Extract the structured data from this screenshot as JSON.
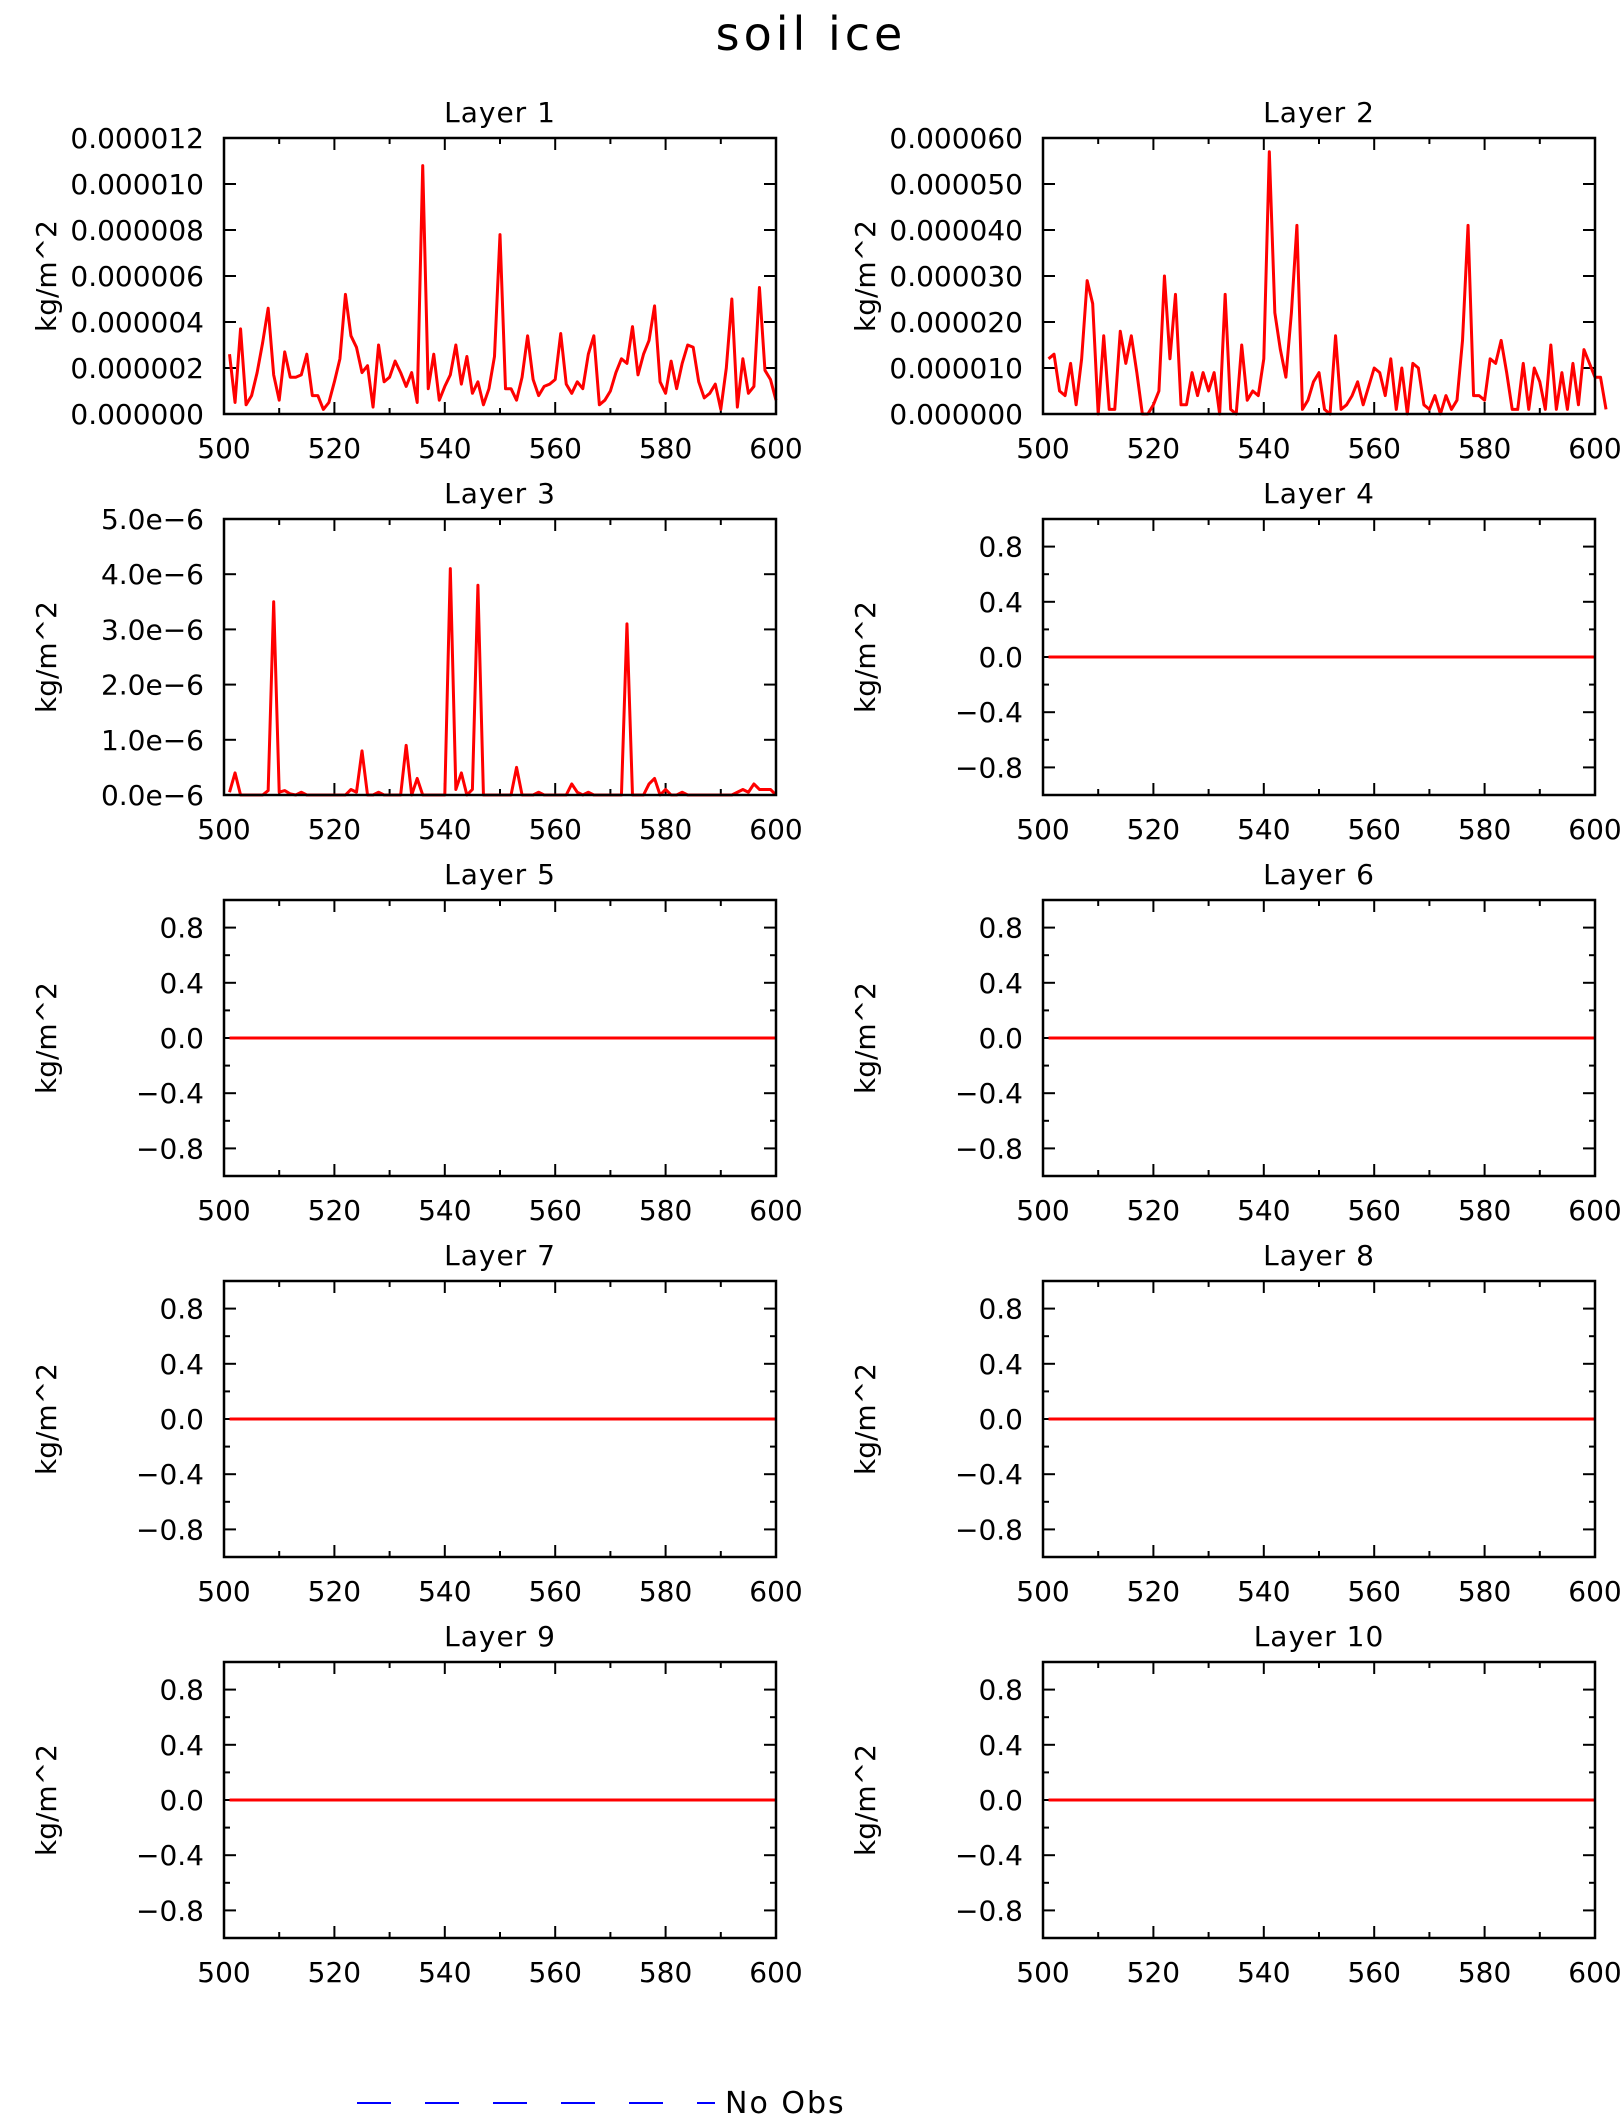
{
  "figure": {
    "title": "soil ice",
    "legend": {
      "label": "No Obs",
      "line_color": "#0000ff",
      "line_style": "dashed"
    },
    "series_color": "#ff0000"
  },
  "chart_data": [
    {
      "type": "line",
      "title": "Layer 1",
      "ylabel": "kg/m^2",
      "xlim": [
        500,
        600
      ],
      "ylim": [
        0,
        1.2e-05
      ],
      "x_ticks": [
        "500",
        "520",
        "540",
        "560",
        "580",
        "600"
      ],
      "y_ticks": [
        "0.000000",
        "0.000002",
        "0.000004",
        "0.000006",
        "0.000008",
        "0.000010",
        "0.000012"
      ],
      "y_tick_values": [
        0,
        2e-06,
        4e-06,
        6e-06,
        8e-06,
        1e-05,
        1.2e-05
      ],
      "x_start": 501,
      "x_step": 1,
      "values": [
        2.6e-06,
        5e-07,
        3.7e-06,
        4e-07,
        8e-07,
        1.8e-06,
        3.1e-06,
        4.6e-06,
        1.7e-06,
        6e-07,
        2.7e-06,
        1.6e-06,
        1.6e-06,
        1.7e-06,
        2.6e-06,
        8e-07,
        8e-07,
        2e-07,
        5e-07,
        1.4e-06,
        2.4e-06,
        5.2e-06,
        3.4e-06,
        2.9e-06,
        1.8e-06,
        2.1e-06,
        3e-07,
        3e-06,
        1.4e-06,
        1.6e-06,
        2.3e-06,
        1.8e-06,
        1.2e-06,
        1.8e-06,
        5e-07,
        1.08e-05,
        1.1e-06,
        2.6e-06,
        6e-07,
        1.2e-06,
        1.7e-06,
        3e-06,
        1.3e-06,
        2.5e-06,
        9e-07,
        1.4e-06,
        4e-07,
        1.1e-06,
        2.5e-06,
        7.8e-06,
        1.1e-06,
        1.1e-06,
        6e-07,
        1.6e-06,
        3.4e-06,
        1.5e-06,
        8e-07,
        1.2e-06,
        1.3e-06,
        1.5e-06,
        3.5e-06,
        1.3e-06,
        9e-07,
        1.4e-06,
        1.1e-06,
        2.6e-06,
        3.4e-06,
        4e-07,
        6e-07,
        1e-06,
        1.8e-06,
        2.4e-06,
        2.2e-06,
        3.8e-06,
        1.7e-06,
        2.6e-06,
        3.2e-06,
        4.7e-06,
        1.4e-06,
        9e-07,
        2.3e-06,
        1.1e-06,
        2.2e-06,
        3e-06,
        2.9e-06,
        1.4e-06,
        7e-07,
        9e-07,
        1.3e-06,
        2e-07,
        2e-06,
        5e-06,
        3e-07,
        2.4e-06,
        9e-07,
        1.2e-06,
        5.5e-06,
        1.9e-06,
        1.5e-06,
        6e-07
      ]
    },
    {
      "type": "line",
      "title": "Layer 2",
      "ylabel": "kg/m^2",
      "xlim": [
        500,
        600
      ],
      "ylim": [
        0,
        6e-05
      ],
      "x_ticks": [
        "500",
        "520",
        "540",
        "560",
        "580",
        "600"
      ],
      "y_ticks": [
        "0.000000",
        "0.000010",
        "0.000020",
        "0.000030",
        "0.000040",
        "0.000050",
        "0.000060"
      ],
      "y_tick_values": [
        0,
        1e-05,
        2e-05,
        3e-05,
        4e-05,
        5e-05,
        6e-05
      ],
      "x_start": 501,
      "x_step": 1,
      "values": [
        1.2e-05,
        1.3e-05,
        5e-06,
        4e-06,
        1.1e-05,
        2e-06,
        1.2e-05,
        2.9e-05,
        2.4e-05,
        0,
        1.7e-05,
        1e-06,
        1e-06,
        1.8e-05,
        1.1e-05,
        1.7e-05,
        9e-06,
        0,
        0,
        2e-06,
        5e-06,
        3e-05,
        1.2e-05,
        2.6e-05,
        2e-06,
        2e-06,
        9e-06,
        4e-06,
        9e-06,
        5e-06,
        9e-06,
        0,
        2.6e-05,
        1e-06,
        0,
        1.5e-05,
        3e-06,
        5e-06,
        4e-06,
        1.2e-05,
        5.7e-05,
        2.2e-05,
        1.4e-05,
        8e-06,
        2.2e-05,
        4.1e-05,
        1e-06,
        3e-06,
        7e-06,
        9e-06,
        1e-06,
        0,
        1.7e-05,
        1e-06,
        2e-06,
        4e-06,
        7e-06,
        2e-06,
        6e-06,
        1e-05,
        9e-06,
        4e-06,
        1.2e-05,
        1e-06,
        1e-05,
        0,
        1.1e-05,
        1e-05,
        2e-06,
        1e-06,
        4e-06,
        0,
        4e-06,
        1e-06,
        3e-06,
        1.6e-05,
        4.1e-05,
        4e-06,
        4e-06,
        3e-06,
        1.2e-05,
        1.1e-05,
        1.6e-05,
        9e-06,
        1e-06,
        1e-06,
        1.1e-05,
        1e-06,
        1e-05,
        7e-06,
        1e-06,
        1.5e-05,
        1e-06,
        9e-06,
        1e-06,
        1.1e-05,
        2e-06,
        1.4e-05,
        1.1e-05,
        8e-06,
        8e-06,
        1e-06
      ]
    },
    {
      "type": "line",
      "title": "Layer 3",
      "ylabel": "kg/m^2",
      "xlim": [
        500,
        600
      ],
      "ylim": [
        0,
        5e-06
      ],
      "x_ticks": [
        "500",
        "520",
        "540",
        "560",
        "580",
        "600"
      ],
      "y_ticks": [
        "0.0e−6",
        "1.0e−6",
        "2.0e−6",
        "3.0e−6",
        "4.0e−6",
        "5.0e−6"
      ],
      "y_tick_values": [
        0,
        1e-06,
        2e-06,
        3e-06,
        4e-06,
        5e-06
      ],
      "x_start": 501,
      "x_step": 1,
      "values": [
        5e-08,
        4e-07,
        0,
        0,
        0,
        0,
        0,
        8e-08,
        3.5e-06,
        5e-08,
        8e-08,
        2e-08,
        0,
        5e-08,
        0,
        0,
        0,
        0,
        0,
        0,
        0,
        0,
        1e-07,
        5e-08,
        8e-07,
        0,
        0,
        5e-08,
        0,
        0,
        0,
        0,
        9e-07,
        0,
        3e-07,
        0,
        0,
        0,
        0,
        0,
        4.1e-06,
        1e-07,
        4e-07,
        0,
        1e-07,
        3.8e-06,
        0,
        0,
        0,
        0,
        0,
        0,
        5e-07,
        0,
        0,
        0,
        5e-08,
        0,
        0,
        0,
        0,
        0,
        2e-07,
        5e-08,
        0,
        5e-08,
        0,
        0,
        0,
        0,
        0,
        0,
        3.1e-06,
        0,
        0,
        0,
        2e-07,
        3e-07,
        0,
        1e-07,
        0,
        0,
        5e-08,
        0,
        0,
        0,
        0,
        0,
        0,
        0,
        0,
        0,
        5e-08,
        1e-07,
        5e-08,
        2e-07,
        1e-07,
        1e-07,
        1e-07,
        0
      ]
    },
    {
      "type": "line",
      "title": "Layer 4",
      "ylabel": "kg/m^2",
      "xlim": [
        500,
        600
      ],
      "ylim": [
        -1,
        1
      ],
      "x_ticks": [
        "500",
        "520",
        "540",
        "560",
        "580",
        "600"
      ],
      "y_ticks": [
        "−0.8",
        "−0.4",
        "0.0",
        "0.4",
        "0.8"
      ],
      "y_tick_values": [
        -0.8,
        -0.4,
        0,
        0.4,
        0.8
      ],
      "x_start": 501,
      "x_step": 1,
      "constant": 0
    },
    {
      "type": "line",
      "title": "Layer 5",
      "ylabel": "kg/m^2",
      "xlim": [
        500,
        600
      ],
      "ylim": [
        -1,
        1
      ],
      "x_ticks": [
        "500",
        "520",
        "540",
        "560",
        "580",
        "600"
      ],
      "y_ticks": [
        "−0.8",
        "−0.4",
        "0.0",
        "0.4",
        "0.8"
      ],
      "y_tick_values": [
        -0.8,
        -0.4,
        0,
        0.4,
        0.8
      ],
      "x_start": 501,
      "x_step": 1,
      "constant": 0
    },
    {
      "type": "line",
      "title": "Layer 6",
      "ylabel": "kg/m^2",
      "xlim": [
        500,
        600
      ],
      "ylim": [
        -1,
        1
      ],
      "x_ticks": [
        "500",
        "520",
        "540",
        "560",
        "580",
        "600"
      ],
      "y_ticks": [
        "−0.8",
        "−0.4",
        "0.0",
        "0.4",
        "0.8"
      ],
      "y_tick_values": [
        -0.8,
        -0.4,
        0,
        0.4,
        0.8
      ],
      "x_start": 501,
      "x_step": 1,
      "constant": 0
    },
    {
      "type": "line",
      "title": "Layer 7",
      "ylabel": "kg/m^2",
      "xlim": [
        500,
        600
      ],
      "ylim": [
        -1,
        1
      ],
      "x_ticks": [
        "500",
        "520",
        "540",
        "560",
        "580",
        "600"
      ],
      "y_ticks": [
        "−0.8",
        "−0.4",
        "0.0",
        "0.4",
        "0.8"
      ],
      "y_tick_values": [
        -0.8,
        -0.4,
        0,
        0.4,
        0.8
      ],
      "x_start": 501,
      "x_step": 1,
      "constant": 0
    },
    {
      "type": "line",
      "title": "Layer 8",
      "ylabel": "kg/m^2",
      "xlim": [
        500,
        600
      ],
      "ylim": [
        -1,
        1
      ],
      "x_ticks": [
        "500",
        "520",
        "540",
        "560",
        "580",
        "600"
      ],
      "y_ticks": [
        "−0.8",
        "−0.4",
        "0.0",
        "0.4",
        "0.8"
      ],
      "y_tick_values": [
        -0.8,
        -0.4,
        0,
        0.4,
        0.8
      ],
      "x_start": 501,
      "x_step": 1,
      "constant": 0
    },
    {
      "type": "line",
      "title": "Layer 9",
      "ylabel": "kg/m^2",
      "xlim": [
        500,
        600
      ],
      "ylim": [
        -1,
        1
      ],
      "x_ticks": [
        "500",
        "520",
        "540",
        "560",
        "580",
        "600"
      ],
      "y_ticks": [
        "−0.8",
        "−0.4",
        "0.0",
        "0.4",
        "0.8"
      ],
      "y_tick_values": [
        -0.8,
        -0.4,
        0,
        0.4,
        0.8
      ],
      "x_start": 501,
      "x_step": 1,
      "constant": 0
    },
    {
      "type": "line",
      "title": "Layer 10",
      "ylabel": "kg/m^2",
      "xlim": [
        500,
        600
      ],
      "ylim": [
        -1,
        1
      ],
      "x_ticks": [
        "500",
        "520",
        "540",
        "560",
        "580",
        "600"
      ],
      "y_ticks": [
        "−0.8",
        "−0.4",
        "0.0",
        "0.4",
        "0.8"
      ],
      "y_tick_values": [
        -0.8,
        -0.4,
        0,
        0.4,
        0.8
      ],
      "x_start": 501,
      "x_step": 1,
      "constant": 0
    }
  ]
}
